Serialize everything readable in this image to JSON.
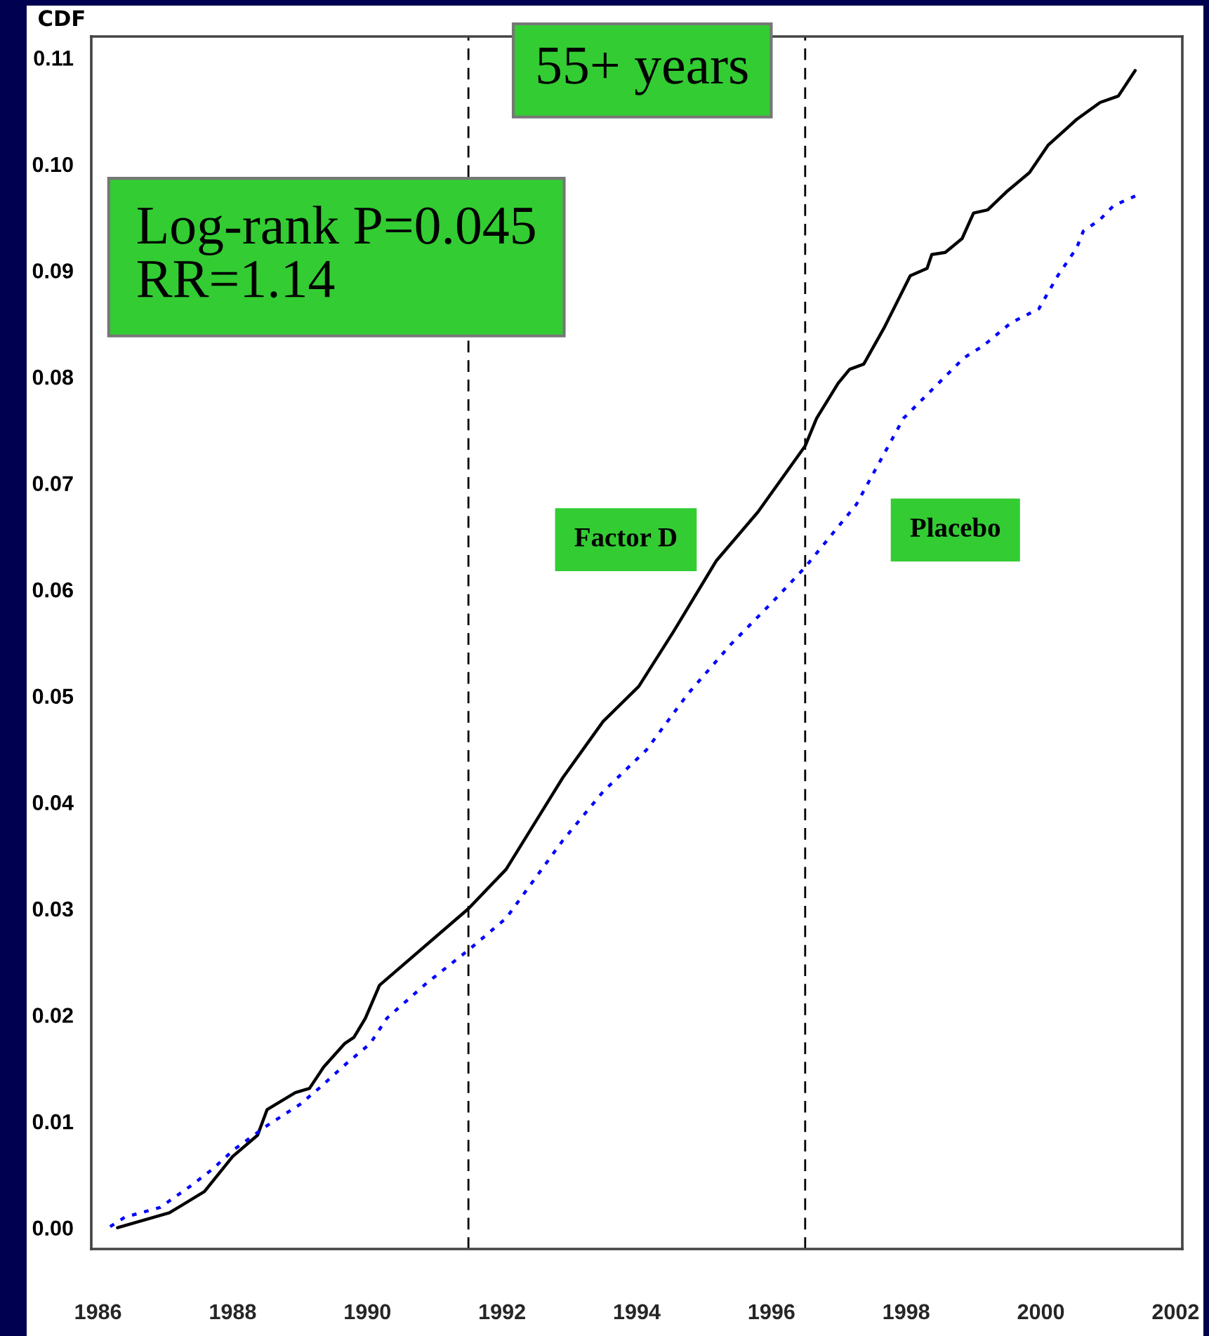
{
  "chart_data": {
    "type": "line",
    "title": "55+ years",
    "ylabel": "CDF",
    "annotations": [
      "Log-rank P=0.045\nRR=1.14"
    ],
    "xlim": [
      1985.9,
      2002.1
    ],
    "xticks": [
      1986,
      1988,
      1990,
      1992,
      1994,
      1996,
      1998,
      2000,
      2002
    ],
    "ylim": [
      -0.002,
      0.112
    ],
    "yticks": [
      {
        "value": 0,
        "label": "0.00"
      },
      {
        "value": 0.01,
        "label": "0.01"
      },
      {
        "value": 0.02,
        "label": "0.02"
      },
      {
        "value": 0.03,
        "label": "0.03"
      },
      {
        "value": 0.04,
        "label": "0.04"
      },
      {
        "value": 0.05,
        "label": "0.05"
      },
      {
        "value": 0.06,
        "label": "0.06"
      },
      {
        "value": 0.07,
        "label": "0.07"
      },
      {
        "value": 0.08,
        "label": "0.08"
      },
      {
        "value": 0.09,
        "label": "0.09"
      },
      {
        "value": 0.1,
        "label": "0.10"
      },
      {
        "value": 0.11,
        "label": "0.11"
      }
    ],
    "grid": false,
    "legend": false,
    "ref_lines": [
      {
        "axis": "x",
        "value": 1991.5,
        "line_style": "dashed",
        "color": "#000000"
      },
      {
        "axis": "x",
        "value": 1996.5,
        "line_style": "dashed",
        "color": "#000000"
      }
    ],
    "series": [
      {
        "name": "Factor D",
        "color": "#000000",
        "line_style": "solid",
        "x": [
          1986.29,
          1987.06,
          1987.58,
          1988.0,
          1988.37,
          1988.51,
          1988.93,
          1989.14,
          1989.35,
          1989.66,
          1989.8,
          1989.97,
          1990.18,
          1991.5,
          1992.06,
          1992.9,
          1993.5,
          1994.03,
          1994.55,
          1995.18,
          1995.8,
          1996.5,
          1996.67,
          1996.99,
          1997.16,
          1997.37,
          1997.68,
          1998.06,
          1998.31,
          1998.38,
          1998.58,
          1998.83,
          1999.0,
          1999.21,
          1999.49,
          1999.83,
          2000.11,
          2000.53,
          2000.88,
          2001.15,
          2001.4
        ],
        "values": [
          0.0,
          0.0014,
          0.0034,
          0.0067,
          0.0087,
          0.0111,
          0.0127,
          0.0131,
          0.0151,
          0.0173,
          0.0179,
          0.0197,
          0.0228,
          0.03,
          0.0337,
          0.0423,
          0.0476,
          0.0509,
          0.0561,
          0.0627,
          0.0673,
          0.0735,
          0.0761,
          0.0794,
          0.0807,
          0.0812,
          0.0847,
          0.0895,
          0.0902,
          0.0915,
          0.0917,
          0.093,
          0.0954,
          0.0957,
          0.0974,
          0.0992,
          0.1018,
          0.1042,
          0.1058,
          0.1064,
          0.1088
        ]
      },
      {
        "name": "Placebo",
        "color": "#0000ff",
        "line_style": "dotted",
        "x": [
          1986.18,
          1986.4,
          1986.92,
          1987.37,
          1987.68,
          1988.03,
          1988.51,
          1989.0,
          1989.28,
          1989.7,
          1990.04,
          1990.29,
          1990.88,
          1991.5,
          1992.06,
          1992.9,
          1993.5,
          1994.14,
          1994.76,
          1995.39,
          1996.01,
          1996.5,
          1997.26,
          1997.96,
          1998.48,
          1998.86,
          1999.14,
          1999.56,
          1999.97,
          2000.25,
          2000.53,
          2000.63,
          2000.88,
          2001.08,
          2001.4
        ],
        "values": [
          0.0001,
          0.001,
          0.0019,
          0.0039,
          0.0054,
          0.0074,
          0.0096,
          0.0116,
          0.0131,
          0.0155,
          0.0173,
          0.0197,
          0.023,
          0.0261,
          0.0291,
          0.0364,
          0.041,
          0.0449,
          0.0502,
          0.0548,
          0.0588,
          0.0621,
          0.068,
          0.0761,
          0.0794,
          0.0818,
          0.0829,
          0.0851,
          0.0864,
          0.0895,
          0.0921,
          0.0937,
          0.0948,
          0.0961,
          0.097
        ]
      }
    ]
  }
}
